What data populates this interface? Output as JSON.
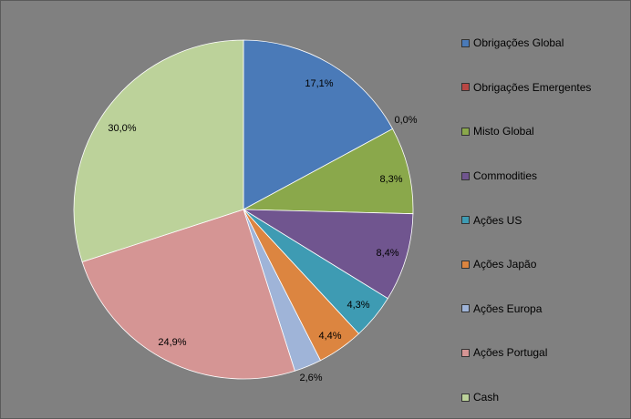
{
  "chart_data": {
    "type": "pie",
    "categories": [
      "Obrigações Global",
      "Obrigações Emergentes",
      "Misto Global",
      "Commodities",
      "Ações US",
      "Ações Japão",
      "Ações Europa",
      "Ações Portugal",
      "Cash"
    ],
    "values": [
      17.1,
      0.0,
      8.3,
      8.4,
      4.3,
      4.4,
      2.6,
      24.9,
      30.0
    ],
    "labels": [
      "17,1%",
      "0,0%",
      "8,3%",
      "8,4%",
      "4,3%",
      "4,4%",
      "2,6%",
      "24,9%",
      "30,0%"
    ],
    "colors": [
      "#4a7ab8",
      "#b94744",
      "#8aa84b",
      "#70558f",
      "#3e9bb3",
      "#dc8540",
      "#9fb4d8",
      "#d59594",
      "#bcd29a"
    ],
    "legend_position": "right",
    "title": ""
  }
}
